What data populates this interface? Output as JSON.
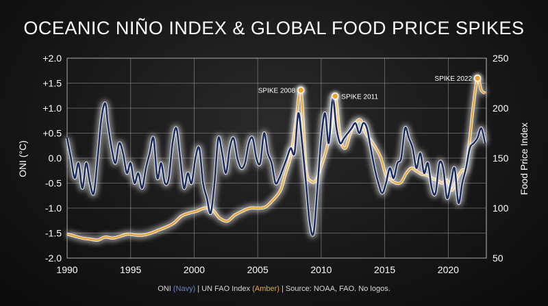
{
  "title": "OCEANIC NIÑO INDEX & GLOBAL FOOD PRICE SPIKES",
  "caption": {
    "prefix": "ONI ",
    "navy": "(Navy)",
    "middle": " | UN FAO Index ",
    "amber": "(Amber)",
    "suffix": " | Source: NOAA, FAO. No logos."
  },
  "chart_data": {
    "type": "line",
    "title": "OCEANIC NIÑO INDEX & GLOBAL FOOD PRICE SPIKES",
    "ylabel": "ONI (°C)",
    "y2label": "Food Price Index",
    "xlim": [
      1990,
      2023
    ],
    "ylim": [
      -2.0,
      2.0
    ],
    "y2lim": [
      50,
      250
    ],
    "x_ticks": [
      1990,
      1995,
      2000,
      2005,
      2010,
      2015,
      2020
    ],
    "x_tick_labels": [
      "1990",
      "1995",
      "2000",
      "2005",
      "2010",
      "2015",
      "2020"
    ],
    "y_ticks": [
      2.0,
      1.5,
      1.0,
      0.5,
      0.0,
      -0.5,
      -1.0,
      -1.5,
      -2.0
    ],
    "y_tick_labels": [
      "+2.0",
      "+1.5",
      "+1.0",
      "+0.5",
      "0.0",
      "-0.5",
      "-1.0",
      "-1.5",
      "-2.0"
    ],
    "y2_ticks": [
      250,
      200,
      150,
      100,
      50
    ],
    "y2_tick_labels": [
      "250",
      "200",
      "150",
      "100",
      "50"
    ],
    "grid": true,
    "colors": {
      "oni": "#1b2d5e",
      "fao": "#e8a63a",
      "glow": "#ffffff"
    },
    "series": [
      {
        "name": "ONI",
        "axis": "left",
        "x": [
          1990.0,
          1990.3,
          1990.6,
          1990.9,
          1991.2,
          1991.5,
          1991.8,
          1992.1,
          1992.4,
          1992.7,
          1993.0,
          1993.2,
          1993.5,
          1993.8,
          1994.1,
          1994.4,
          1994.7,
          1995.0,
          1995.3,
          1995.6,
          1995.9,
          1996.2,
          1996.5,
          1996.8,
          1997.1,
          1997.4,
          1997.7,
          1998.0,
          1998.3,
          1998.6,
          1998.9,
          1999.2,
          1999.5,
          1999.8,
          2000.1,
          2000.4,
          2000.7,
          2001.0,
          2001.3,
          2001.6,
          2001.9,
          2002.2,
          2002.5,
          2002.8,
          2003.1,
          2003.4,
          2003.7,
          2004.0,
          2004.3,
          2004.6,
          2004.9,
          2005.2,
          2005.5,
          2005.8,
          2006.1,
          2006.4,
          2006.7,
          2007.0,
          2007.3,
          2007.6,
          2007.9,
          2008.2,
          2008.5,
          2008.8,
          2009.1,
          2009.4,
          2009.7,
          2010.0,
          2010.3,
          2010.6,
          2010.9,
          2011.2,
          2011.5,
          2011.8,
          2012.1,
          2012.4,
          2012.7,
          2013.0,
          2013.3,
          2013.6,
          2013.9,
          2014.2,
          2014.5,
          2014.8,
          2015.1,
          2015.4,
          2015.7,
          2016.0,
          2016.3,
          2016.6,
          2016.9,
          2017.2,
          2017.5,
          2017.8,
          2018.1,
          2018.4,
          2018.7,
          2019.0,
          2019.3,
          2019.6,
          2019.9,
          2020.2,
          2020.5,
          2020.8,
          2021.1,
          2021.4,
          2021.7,
          2022.0,
          2022.3,
          2022.6,
          2022.9
        ],
        "values": [
          0.4,
          0.0,
          -0.4,
          -0.1,
          -0.6,
          -0.1,
          -0.5,
          -0.7,
          0.0,
          0.8,
          1.1,
          0.7,
          0.2,
          -0.1,
          0.3,
          0.1,
          -0.3,
          -0.1,
          -0.5,
          -0.3,
          -0.6,
          -0.2,
          0.1,
          0.4,
          -0.4,
          -0.1,
          -0.5,
          -0.4,
          0.3,
          0.6,
          0.0,
          -0.6,
          -0.3,
          -0.5,
          0.0,
          0.2,
          -0.5,
          -0.8,
          -1.1,
          -0.5,
          0.4,
          0.1,
          -0.3,
          0.2,
          0.4,
          0.0,
          -0.2,
          -0.1,
          0.3,
          0.4,
          0.0,
          -0.1,
          0.5,
          0.1,
          -0.1,
          -0.5,
          -0.4,
          -0.2,
          0.0,
          0.2,
          0.1,
          0.9,
          0.3,
          -0.5,
          -1.3,
          -1.5,
          -0.6,
          0.4,
          0.9,
          0.3,
          1.2,
          0.6,
          0.3,
          0.4,
          0.5,
          0.6,
          0.7,
          0.5,
          0.7,
          0.6,
          0.2,
          -0.2,
          -0.5,
          -0.7,
          -0.5,
          -0.2,
          -0.4,
          -0.1,
          0.0,
          0.6,
          0.4,
          0.2,
          -0.2,
          0.1,
          -0.3,
          -0.1,
          -0.6,
          -0.7,
          -0.1,
          -0.2,
          -0.8,
          -0.5,
          -0.2,
          -0.9,
          -0.5,
          -0.2,
          0.2,
          0.3,
          0.4,
          0.6,
          0.3
        ],
        "annotations": []
      },
      {
        "name": "UN FAO Index",
        "axis": "right",
        "x": [
          1990.0,
          1990.6,
          1991.2,
          1991.8,
          1992.4,
          1993.0,
          1993.6,
          1994.2,
          1994.8,
          1995.4,
          1996.0,
          1996.6,
          1997.2,
          1997.8,
          1998.4,
          1999.0,
          1999.6,
          2000.2,
          2000.8,
          2001.4,
          2002.0,
          2002.6,
          2003.2,
          2003.8,
          2004.4,
          2005.0,
          2005.6,
          2006.2,
          2006.8,
          2007.2,
          2007.6,
          2008.0,
          2008.4,
          2008.8,
          2009.2,
          2009.6,
          2010.0,
          2010.4,
          2010.8,
          2011.1,
          2011.5,
          2011.9,
          2012.3,
          2012.7,
          2013.1,
          2013.5,
          2013.9,
          2014.3,
          2014.7,
          2015.1,
          2015.5,
          2015.9,
          2016.3,
          2016.7,
          2017.1,
          2017.5,
          2017.9,
          2018.3,
          2018.7,
          2019.1,
          2019.5,
          2019.9,
          2020.3,
          2020.7,
          2021.1,
          2021.4,
          2021.7,
          2022.0,
          2022.3,
          2022.6,
          2022.9
        ],
        "values": [
          74,
          72,
          70,
          69,
          68,
          71,
          70,
          72,
          74,
          73,
          73,
          75,
          78,
          81,
          85,
          92,
          95,
          97,
          100,
          99,
          90,
          87,
          93,
          97,
          100,
          100,
          101,
          108,
          118,
          135,
          152,
          185,
          218,
          140,
          127,
          128,
          142,
          158,
          180,
          212,
          170,
          160,
          175,
          185,
          188,
          175,
          168,
          160,
          150,
          133,
          128,
          125,
          126,
          135,
          140,
          137,
          134,
          133,
          130,
          128,
          125,
          128,
          118,
          130,
          138,
          140,
          170,
          205,
          230,
          218,
          215
        ],
        "annotations": [
          {
            "label": "SPIKE 2008",
            "x": 2008.4,
            "value": 218
          },
          {
            "label": "SPIKE 2011",
            "x": 2011.1,
            "value": 212
          },
          {
            "label": "SPIKE 2022",
            "x": 2022.3,
            "value": 230
          }
        ]
      }
    ]
  }
}
